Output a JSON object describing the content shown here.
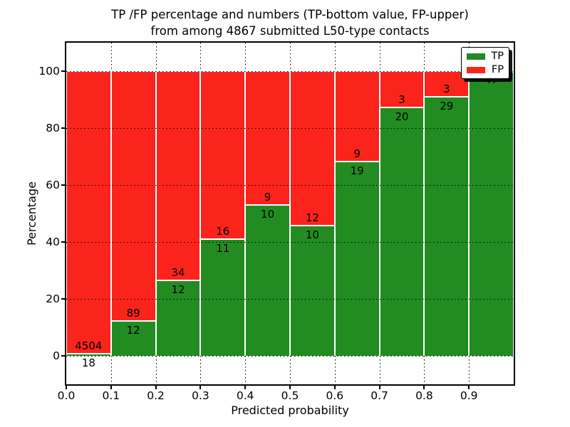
{
  "figure": {
    "title_line1": "TP /FP percentage and numbers (TP-bottom value, FP-upper)",
    "title_line2": "from among 4867 submitted L50-type contacts",
    "xlabel": "Predicted probability",
    "ylabel": "Percentage",
    "x_tick_labels": [
      "0.0",
      "0.1",
      "0.2",
      "0.3",
      "0.4",
      "0.5",
      "0.6",
      "0.7",
      "0.8",
      "0.9"
    ],
    "y_tick_labels": [
      "0",
      "20",
      "40",
      "60",
      "80",
      "100"
    ],
    "colors": {
      "tp": "#228b22",
      "fp": "#fa241c",
      "axis": "#000000",
      "grid": "#000000",
      "bar_edge": "#ffffff",
      "background": "#ffffff"
    }
  },
  "chart_data": {
    "type": "bar",
    "stacked": true,
    "normalized_to_percent": true,
    "title": "TP /FP percentage and numbers (TP-bottom value, FP-upper)\nfrom among 4867 submitted L50-type contacts",
    "xlabel": "Predicted probability",
    "ylabel": "Percentage",
    "total_contacts": 4867,
    "bin_width": 0.1,
    "bin_starts": [
      0.0,
      0.1,
      0.2,
      0.3,
      0.4,
      0.5,
      0.6,
      0.7,
      0.8,
      0.9
    ],
    "categories": [
      "0.0-0.1",
      "0.1-0.2",
      "0.2-0.3",
      "0.3-0.4",
      "0.4-0.5",
      "0.5-0.6",
      "0.6-0.7",
      "0.7-0.8",
      "0.8-0.9",
      "0.9-1.0"
    ],
    "series": [
      {
        "name": "TP",
        "color": "#228b22",
        "counts": [
          18,
          12,
          12,
          11,
          10,
          10,
          19,
          20,
          29,
          47
        ],
        "percent": [
          0.4,
          11.88,
          26.09,
          40.74,
          52.63,
          45.45,
          67.86,
          86.96,
          90.63,
          100.0
        ]
      },
      {
        "name": "FP",
        "color": "#fa241c",
        "counts": [
          4504,
          89,
          34,
          16,
          9,
          12,
          9,
          3,
          3,
          0
        ],
        "percent": [
          99.6,
          88.12,
          73.91,
          59.26,
          47.37,
          54.55,
          32.14,
          13.04,
          9.38,
          0.0
        ]
      }
    ],
    "bar_value_labels": {
      "tp": [
        "18",
        "12",
        "12",
        "11",
        "10",
        "10",
        "19",
        "20",
        "29",
        "47"
      ],
      "fp": [
        "4504",
        "89",
        "34",
        "16",
        "9",
        "12",
        "9",
        "3",
        "3",
        ""
      ]
    },
    "xlim": [
      0.0,
      1.0
    ],
    "ylim": [
      -10.3,
      110.3
    ],
    "xticks": [
      0.0,
      0.1,
      0.2,
      0.3,
      0.4,
      0.5,
      0.6,
      0.7,
      0.8,
      0.9
    ],
    "yticks": [
      0,
      20,
      40,
      60,
      80,
      100
    ],
    "grid": true,
    "grid_style": "dotted",
    "legend_position": "upper right"
  }
}
